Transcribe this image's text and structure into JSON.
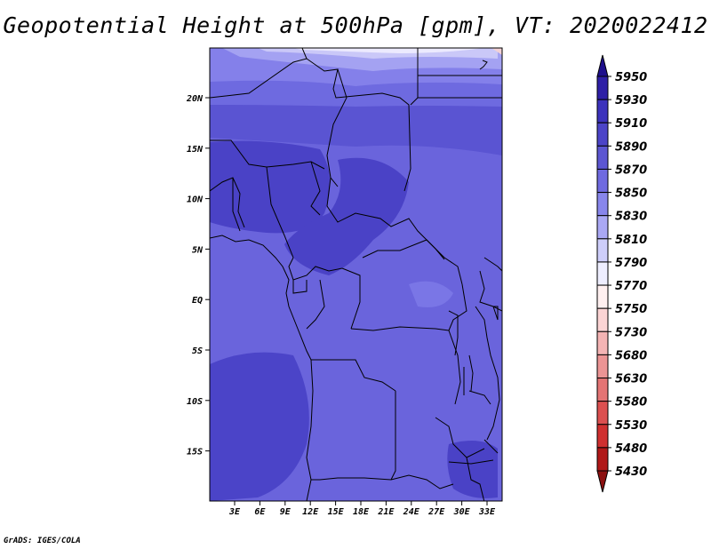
{
  "title": "Geopotential Height at 500hPa [gpm], VT: 2020022412",
  "credit": "GrADS: IGES/COLA",
  "map": {
    "lat_labels": [
      "20N",
      "15N",
      "10N",
      "5N",
      "EQ",
      "5S",
      "10S",
      "15S"
    ],
    "lon_labels": [
      "3E",
      "6E",
      "9E",
      "12E",
      "15E",
      "18E",
      "21E",
      "24E",
      "27E",
      "30E",
      "33E"
    ]
  },
  "colorbar": {
    "levels": [
      "5950",
      "5930",
      "5910",
      "5890",
      "5870",
      "5850",
      "5830",
      "5810",
      "5790",
      "5770",
      "5750",
      "5730",
      "5680",
      "5630",
      "5580",
      "5530",
      "5480",
      "5430"
    ],
    "colors": [
      "#1e0f8c",
      "#2e1fa6",
      "#3c32bc",
      "#4c44c8",
      "#5c56d2",
      "#6f6ae0",
      "#8886ec",
      "#aaa8f4",
      "#cecefa",
      "#eeeeff",
      "#fff0f0",
      "#fbd4d4",
      "#f4b4b4",
      "#ec9494",
      "#e47474",
      "#dc5050",
      "#d03030",
      "#b01818",
      "#8c1010"
    ]
  }
}
